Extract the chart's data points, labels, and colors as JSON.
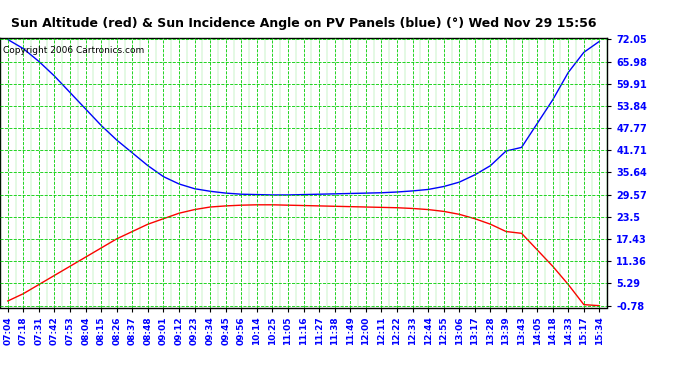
{
  "title": "Sun Altitude (red) & Sun Incidence Angle on PV Panels (blue) (°) Wed Nov 29 15:56",
  "copyright": "Copyright 2006 Cartronics.com",
  "ylabel_ticks": [
    72.05,
    65.98,
    59.91,
    53.84,
    47.77,
    41.71,
    35.64,
    29.57,
    23.5,
    17.43,
    11.36,
    5.29,
    -0.78
  ],
  "ymin": -0.78,
  "ymax": 72.05,
  "bg_color": "#ffffff",
  "grid_color": "#00cc00",
  "blue_color": "#0000ff",
  "red_color": "#ff0000",
  "x_labels": [
    "07:04",
    "07:18",
    "07:31",
    "07:42",
    "07:53",
    "08:04",
    "08:15",
    "08:26",
    "08:37",
    "08:48",
    "09:01",
    "09:12",
    "09:23",
    "09:34",
    "09:45",
    "09:56",
    "10:14",
    "10:25",
    "11:05",
    "11:16",
    "11:27",
    "11:38",
    "11:49",
    "12:00",
    "12:11",
    "12:22",
    "12:33",
    "12:44",
    "12:55",
    "13:06",
    "13:17",
    "13:28",
    "13:39",
    "13:43",
    "14:05",
    "14:18",
    "14:33",
    "15:17",
    "15:34"
  ],
  "blue_data": [
    72.0,
    69.5,
    66.0,
    62.0,
    57.5,
    53.0,
    48.5,
    44.5,
    41.0,
    37.5,
    34.5,
    32.5,
    31.2,
    30.5,
    30.0,
    29.7,
    29.6,
    29.5,
    29.5,
    29.6,
    29.7,
    29.8,
    29.9,
    30.0,
    30.1,
    30.3,
    30.6,
    31.0,
    31.8,
    33.0,
    35.0,
    37.5,
    41.5,
    42.5,
    49.0,
    55.5,
    63.0,
    68.5,
    71.5
  ],
  "red_data": [
    0.5,
    2.5,
    5.0,
    7.5,
    10.0,
    12.5,
    15.0,
    17.5,
    19.5,
    21.5,
    23.0,
    24.5,
    25.5,
    26.2,
    26.5,
    26.7,
    26.8,
    26.8,
    26.7,
    26.6,
    26.5,
    26.4,
    26.3,
    26.2,
    26.1,
    26.0,
    25.8,
    25.5,
    25.0,
    24.2,
    23.0,
    21.5,
    19.5,
    19.0,
    14.5,
    10.0,
    5.0,
    -0.5,
    -0.78
  ],
  "title_fontsize": 9,
  "tick_fontsize": 7,
  "copyright_fontsize": 6.5
}
